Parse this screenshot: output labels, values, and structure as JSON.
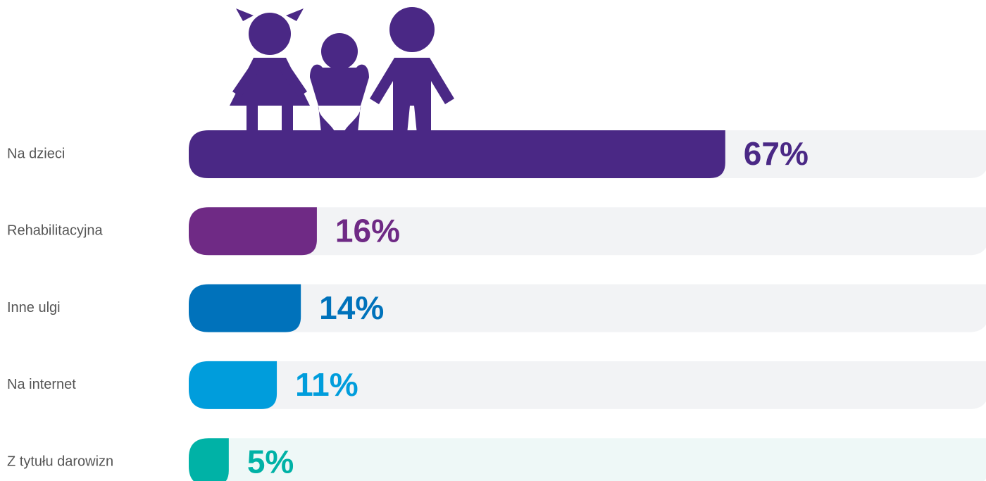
{
  "chart_data": {
    "type": "bar",
    "categories": [
      "Na dzieci",
      "Rehabilitacyjna",
      "Inne ulgi",
      "Na internet",
      "Z tytułu darowizn"
    ],
    "values": [
      67,
      16,
      14,
      11,
      5
    ],
    "value_labels": [
      "67%",
      "16%",
      "14%",
      "11%",
      "5%"
    ],
    "colors": [
      "#4a2885",
      "#6f2a85",
      "#0072bb",
      "#009ddc",
      "#00b2a6"
    ],
    "xlim": [
      0,
      100
    ]
  }
}
